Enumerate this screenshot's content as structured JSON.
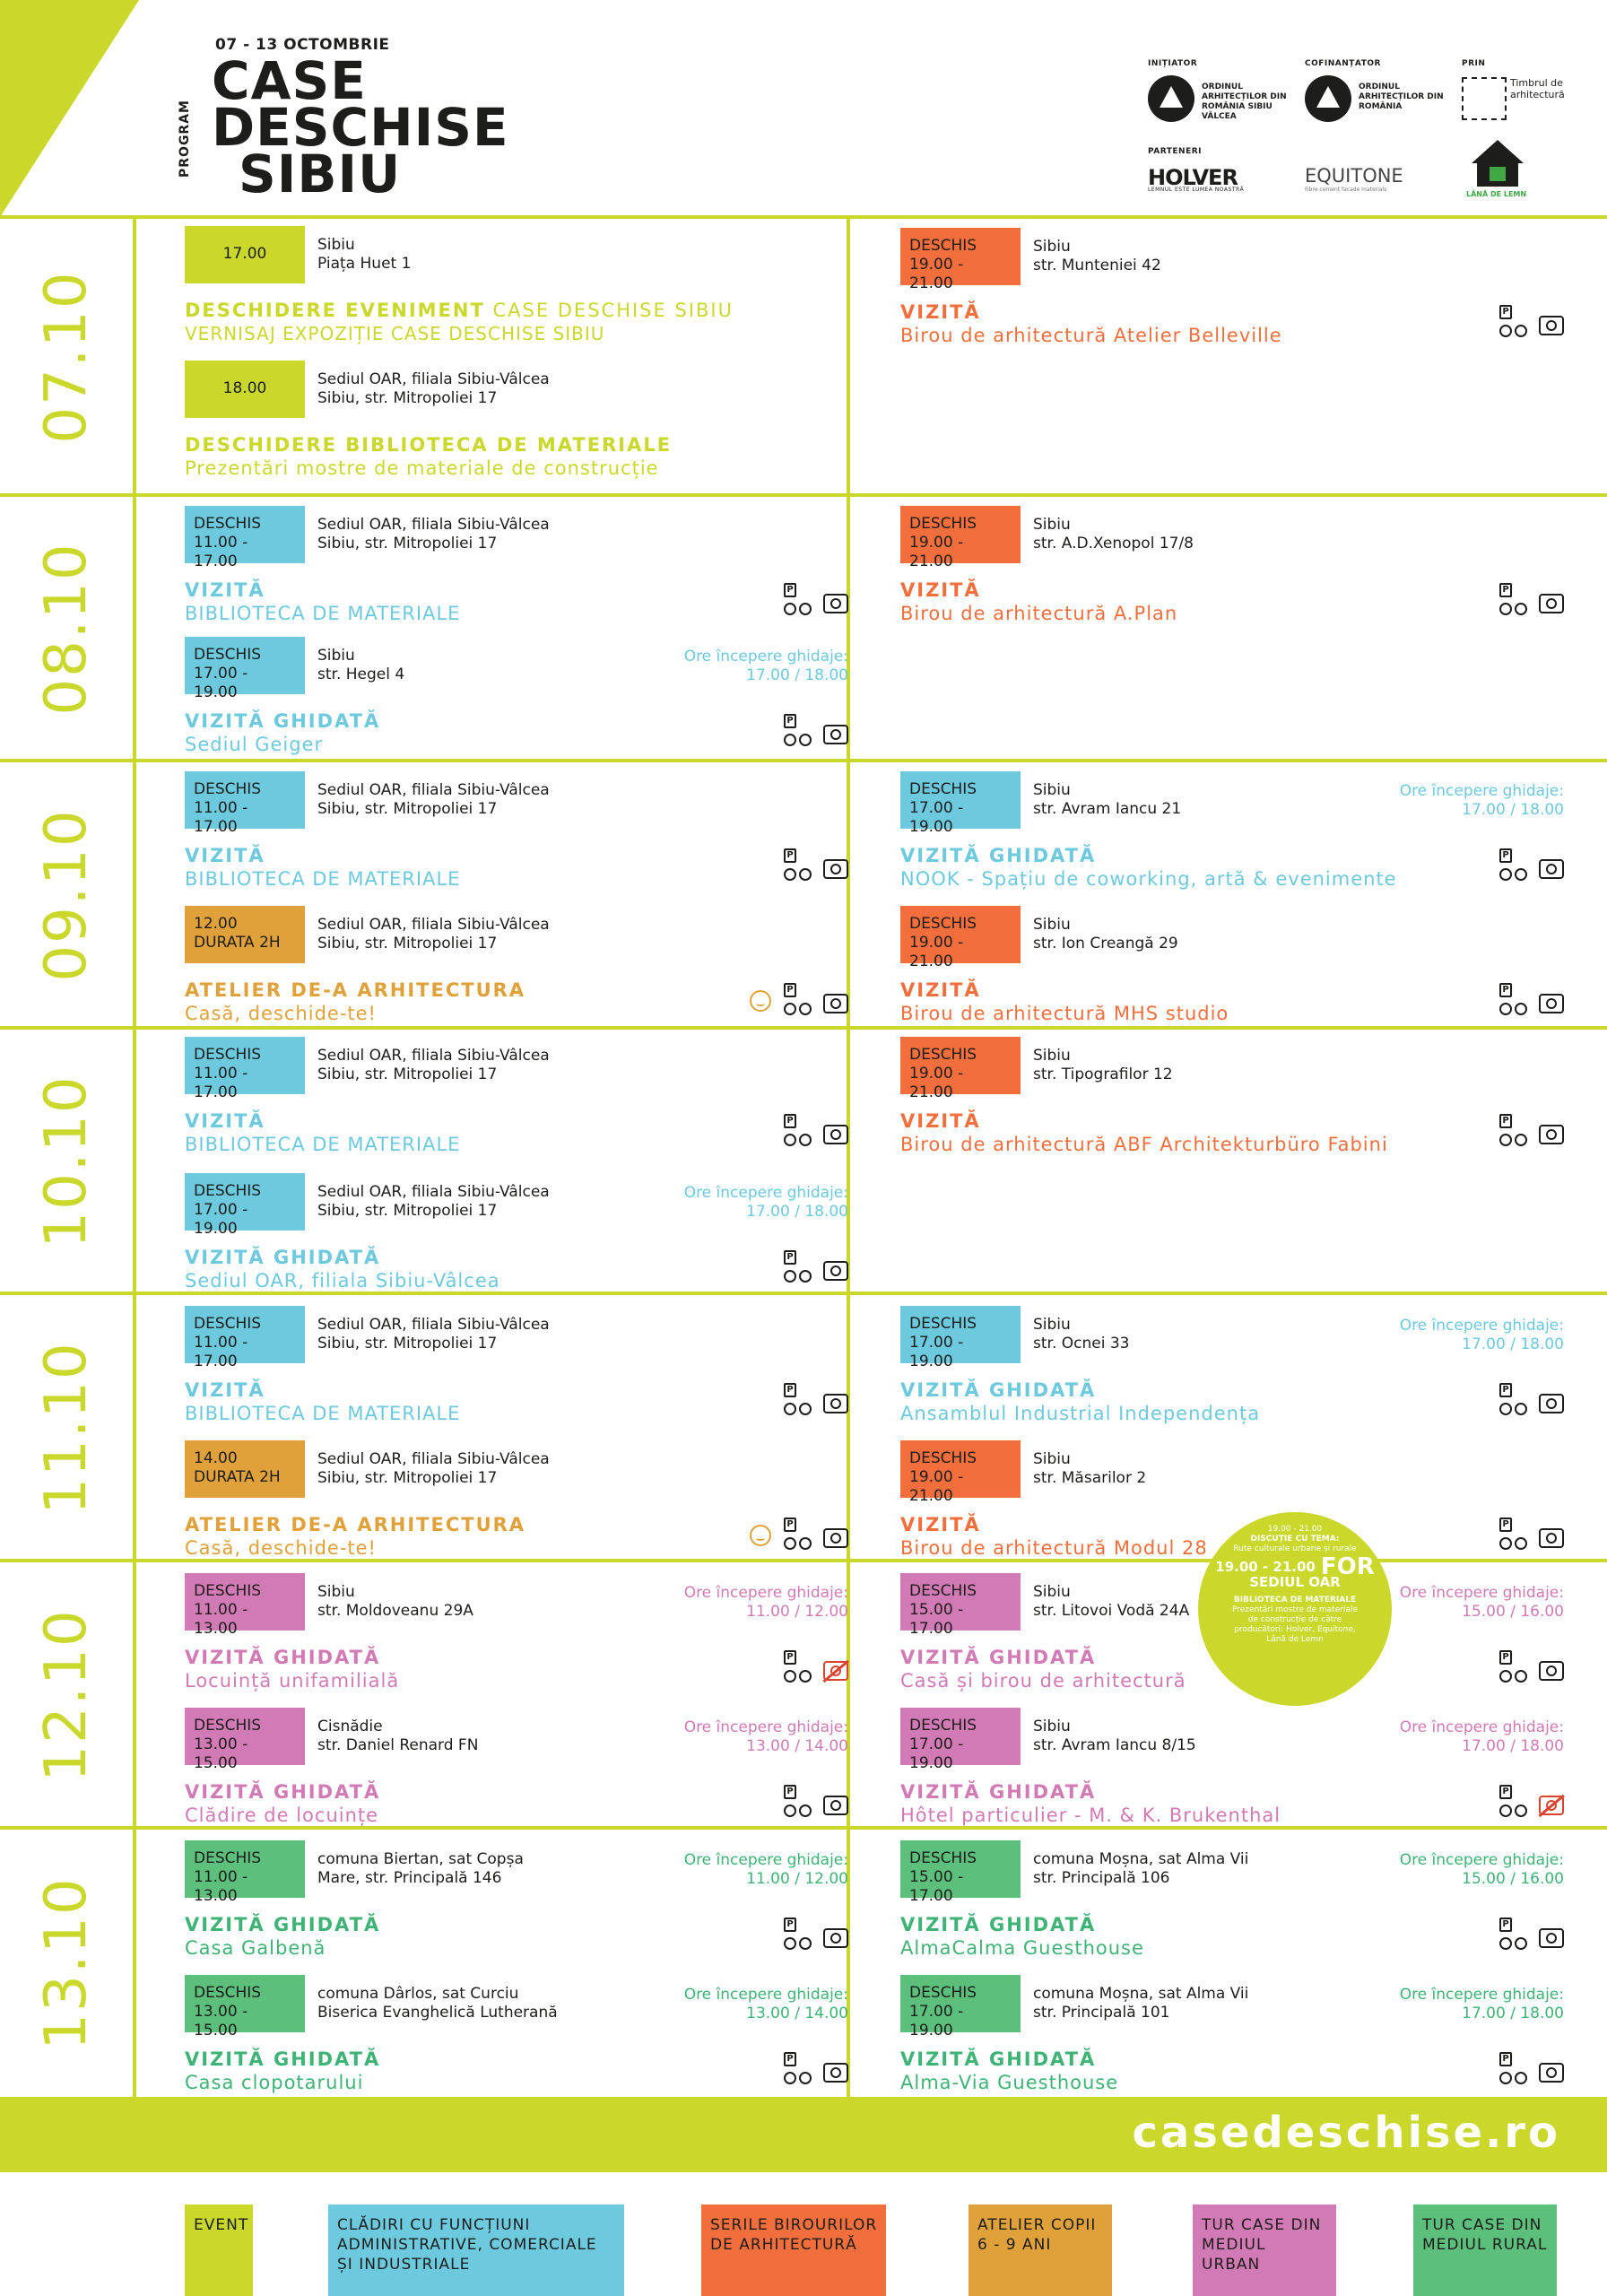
{
  "header": {
    "dates": "07 - 13 OCTOMBRIE",
    "program": "PROGRAM",
    "title_line1": "CASE",
    "title_line2": "DESCHISE",
    "title_line3": "SIBIU",
    "initiator_label": "INIȚIATOR",
    "cofinantator_label": "COFINANȚATOR",
    "prin_label": "PRIN",
    "parteneri_label": "PARTENERI",
    "oar1_text": "ORDINUL ARHITECȚILOR DIN ROMÂNIA SIBIU VÂLCEA",
    "oar2_text": "ORDINUL ARHITECȚILOR DIN ROMÂNIA",
    "timbrul_text": "Timbrul de arhitectură",
    "holver": "HOLVER",
    "holver_sub": "LEMNUL ESTE LUMEA NOASTRĂ",
    "equitone": "EQUITONE",
    "equitone_sub": "Fibre cement facade materials",
    "lana": "LÂNĂ DE LEMN"
  },
  "days": [
    {
      "label": "07.10"
    },
    {
      "label": "08.10"
    },
    {
      "label": "09.10"
    },
    {
      "label": "10.10"
    },
    {
      "label": "11.10"
    },
    {
      "label": "12.10"
    },
    {
      "label": "13.10"
    }
  ],
  "events": {
    "d1l1": {
      "badge": "17.00",
      "addr1": "Sibiu",
      "addr2": "Piața Huet 1",
      "type": "DESCHIDERE EVENIMENT",
      "type_suffix": " CASE DESCHISE SIBIU",
      "name": "VERNISAJ EXPOZIȚIE CASE DESCHISE SIBIU"
    },
    "d1l2": {
      "badge": "18.00",
      "addr1": "Sediul OAR, filiala Sibiu-Vâlcea",
      "addr2": "Sibiu, str. Mitropoliei 17",
      "type": "DESCHIDERE BIBLIOTECA DE MATERIALE",
      "name": "Prezentări mostre de materiale de construcție"
    },
    "d1r1": {
      "badge1": "DESCHIS",
      "badge2": "19.00 - 21.00",
      "addr1": "Sibiu",
      "addr2": "str. Munteniei 42",
      "type": "VIZITĂ",
      "name": "Birou de arhitectură Atelier Belleville"
    },
    "d2l1": {
      "badge1": "DESCHIS",
      "badge2": "11.00 - 17.00",
      "addr1": "Sediul OAR, filiala Sibiu-Vâlcea",
      "addr2": "Sibiu, str. Mitropoliei 17",
      "type": "VIZITĂ",
      "name": "BIBLIOTECA DE MATERIALE"
    },
    "d2l2": {
      "badge1": "DESCHIS",
      "badge2": "17.00 - 19.00",
      "addr1": "Sibiu",
      "addr2": "str. Hegel 4",
      "guide1": "Ore începere ghidaje:",
      "guide2": "17.00  /  18.00",
      "type": "VIZITĂ GHIDATĂ",
      "name": "Sediul Geiger"
    },
    "d2r1": {
      "badge1": "DESCHIS",
      "badge2": "19.00 - 21.00",
      "addr1": "Sibiu",
      "addr2": "str. A.D.Xenopol 17/8",
      "type": "VIZITĂ",
      "name": "Birou de arhitectură A.Plan"
    },
    "d3l1": {
      "badge1": "DESCHIS",
      "badge2": "11.00 - 17.00",
      "addr1": "Sediul OAR, filiala Sibiu-Vâlcea",
      "addr2": "Sibiu, str. Mitropoliei 17",
      "type": "VIZITĂ",
      "name": "BIBLIOTECA DE MATERIALE"
    },
    "d3l2": {
      "badge1": "12.00",
      "badge2": "DURATA 2H",
      "addr1": "Sediul OAR, filiala Sibiu-Vâlcea",
      "addr2": "Sibiu, str. Mitropoliei 17",
      "type": "ATELIER DE-A ARHITECTURA",
      "name": "Casă, deschide-te!"
    },
    "d3r1": {
      "badge1": "DESCHIS",
      "badge2": "17.00 - 19.00",
      "addr1": "Sibiu",
      "addr2": "str. Avram Iancu 21",
      "guide1": "Ore începere ghidaje:",
      "guide2": "17.00  /  18.00",
      "type": "VIZITĂ GHIDATĂ",
      "name": "NOOK - Spațiu de coworking, artă & evenimente"
    },
    "d3r2": {
      "badge1": "DESCHIS",
      "badge2": "19.00 - 21.00",
      "addr1": "Sibiu",
      "addr2": "str. Ion Creangă 29",
      "type": "VIZITĂ",
      "name": "Birou de arhitectură MHS studio"
    },
    "d4l1": {
      "badge1": "DESCHIS",
      "badge2": "11.00 - 17.00",
      "addr1": "Sediul OAR, filiala Sibiu-Vâlcea",
      "addr2": "Sibiu, str. Mitropoliei 17",
      "type": "VIZITĂ",
      "name": "BIBLIOTECA DE MATERIALE"
    },
    "d4l2": {
      "badge1": "DESCHIS",
      "badge2": "17.00 - 19.00",
      "addr1": "Sediul OAR, filiala Sibiu-Vâlcea",
      "addr2": "Sibiu, str. Mitropoliei 17",
      "guide1": "Ore începere ghidaje:",
      "guide2": "17.00  /  18.00",
      "type": "VIZITĂ GHIDATĂ",
      "name": "Sediul OAR, filiala Sibiu-Vâlcea"
    },
    "d4r1": {
      "badge1": "DESCHIS",
      "badge2": "19.00 - 21.00",
      "addr1": "Sibiu",
      "addr2": "str. Tipografilor 12",
      "type": "VIZITĂ",
      "name": "Birou de arhitectură ABF Architekturbüro Fabini"
    },
    "d5l1": {
      "badge1": "DESCHIS",
      "badge2": "11.00 - 17.00",
      "addr1": "Sediul OAR, filiala Sibiu-Vâlcea",
      "addr2": "Sibiu, str. Mitropoliei 17",
      "type": "VIZITĂ",
      "name": "BIBLIOTECA DE MATERIALE"
    },
    "d5l2": {
      "badge1": "14.00",
      "badge2": "DURATA 2H",
      "addr1": "Sediul OAR, filiala Sibiu-Vâlcea",
      "addr2": "Sibiu, str. Mitropoliei 17",
      "type": "ATELIER DE-A ARHITECTURA",
      "name": "Casă, deschide-te!"
    },
    "d5r1": {
      "badge1": "DESCHIS",
      "badge2": "17.00 - 19.00",
      "addr1": "Sibiu",
      "addr2": "str. Ocnei 33",
      "guide1": "Ore începere ghidaje:",
      "guide2": "17.00  /  18.00",
      "type": "VIZITĂ GHIDATĂ",
      "name": "Ansamblul Industrial Independența"
    },
    "d5r2": {
      "badge1": "DESCHIS",
      "badge2": "19.00 - 21.00",
      "addr1": "Sibiu",
      "addr2": "str. Măsarilor 2",
      "type": "VIZITĂ",
      "name": "Birou de arhitectură Modul 28"
    },
    "d6l1": {
      "badge1": "DESCHIS",
      "badge2": "11.00 - 13.00",
      "addr1": "Sibiu",
      "addr2": "str. Moldoveanu 29A",
      "guide1": "Ore începere ghidaje:",
      "guide2": "11.00  /  12.00",
      "type": "VIZITĂ GHIDATĂ",
      "name": "Locuință unifamilială"
    },
    "d6l2": {
      "badge1": "DESCHIS",
      "badge2": "13.00 - 15.00",
      "addr1": "Cisnădie",
      "addr2": "str. Daniel Renard FN",
      "guide1": "Ore începere ghidaje:",
      "guide2": "13.00  /  14.00",
      "type": "VIZITĂ GHIDATĂ",
      "name": "Clădire de locuințe"
    },
    "d6r1": {
      "badge1": "DESCHIS",
      "badge2": "15.00 - 17.00",
      "addr1": "Sibiu",
      "addr2": "str. Litovoi Vodă 24A",
      "guide1": "Ore începere ghidaje:",
      "guide2": "15.00  /  16.00",
      "type": "VIZITĂ GHIDATĂ",
      "name": "Casă și birou de arhitectură"
    },
    "d6r2": {
      "badge1": "DESCHIS",
      "badge2": "17.00 - 19.00",
      "addr1": "Sibiu",
      "addr2": "str. Avram Iancu 8/15",
      "guide1": "Ore începere ghidaje:",
      "guide2": "17.00  /  18.00",
      "type": "VIZITĂ GHIDATĂ",
      "name": "Hôtel particulier - M. & K. Brukenthal"
    },
    "d7l1": {
      "badge1": "DESCHIS",
      "badge2": "11.00 - 13.00",
      "addr1": "comuna Biertan, sat Copșa",
      "addr2": "Mare, str. Principală 146",
      "guide1": "Ore începere ghidaje:",
      "guide2": "11.00  /  12.00",
      "type": "VIZITĂ GHIDATĂ",
      "name": "Casa Galbenă"
    },
    "d7l2": {
      "badge1": "DESCHIS",
      "badge2": "13.00 - 15.00",
      "addr1": "comuna Dârlos, sat Curciu",
      "addr2": "Biserica Evanghelică Lutherană",
      "guide1": "Ore începere ghidaje:",
      "guide2": "13.00  /  14.00",
      "type": "VIZITĂ GHIDATĂ",
      "name": "Casa clopotarului"
    },
    "d7r1": {
      "badge1": "DESCHIS",
      "badge2": "15.00 - 17.00",
      "addr1": "comuna Moșna, sat Alma Vii",
      "addr2": "str. Principală 106",
      "guide1": "Ore începere ghidaje:",
      "guide2": "15.00  /  16.00",
      "type": "VIZITĂ GHIDATĂ",
      "name": "AlmaCalma Guesthouse"
    },
    "d7r2": {
      "badge1": "DESCHIS",
      "badge2": "17.00 - 19.00",
      "addr1": "comuna Moșna, sat Alma Vii",
      "addr2": "str. Principală 101",
      "guide1": "Ore începere ghidaje:",
      "guide2": "17.00  /  18.00",
      "type": "VIZITĂ GHIDATĂ",
      "name": "Alma-Via Guesthouse"
    }
  },
  "bubble": {
    "l1": "19.00 - 21.00",
    "l2": "DISCUȚIE CU TEMA:",
    "l3": "Rute culturale urbane și rurale",
    "l4": "19.00 - 21.00",
    "l5": "SEDIUL OAR",
    "for": "FOR",
    "l6": "BIBLIOTECA DE MATERIALE",
    "l7": "Prezentări mostre de materiale de construcție de către producători: Holver, Equitone, Lână de Lemn"
  },
  "website": "casedeschise.ro",
  "legend": [
    {
      "label": "EVENT",
      "color": "#c9d82b"
    },
    {
      "label": "CLĂDIRI CU FUNCȚIUNI ADMINISTRATIVE, COMERCIALE ȘI INDUSTRIALE",
      "color": "#6cc9de"
    },
    {
      "label": "SERILE BIROURILOR DE ARHITECTURĂ",
      "color": "#f26f3d"
    },
    {
      "label": "ATELIER COPII 6 - 9 ANI",
      "color": "#e0a13a"
    },
    {
      "label": "TUR CASE DIN MEDIUL URBAN",
      "color": "#d27ab5"
    },
    {
      "label": "TUR CASE DIN MEDIUL RURAL",
      "color": "#5cbf7c"
    }
  ],
  "icons": {
    "parking_bike": "parking-bike-icon",
    "camera": "camera-icon",
    "no_camera": "no-photo-icon",
    "kids": "kids-icon"
  }
}
